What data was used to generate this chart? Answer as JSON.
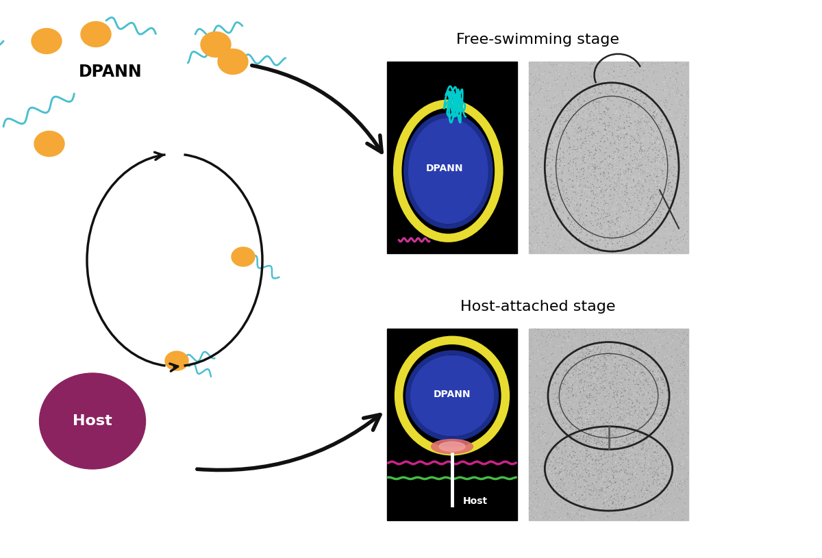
{
  "background_color": "#ffffff",
  "dpann_color": "#F5A835",
  "host_color": "#8B2360",
  "flagella_color": "#4BBFCF",
  "arrow_color": "#111111",
  "title_free": "Free-swimming stage",
  "title_attached": "Host-attached stage",
  "dpann_label": "DPANN",
  "host_label": "Host"
}
